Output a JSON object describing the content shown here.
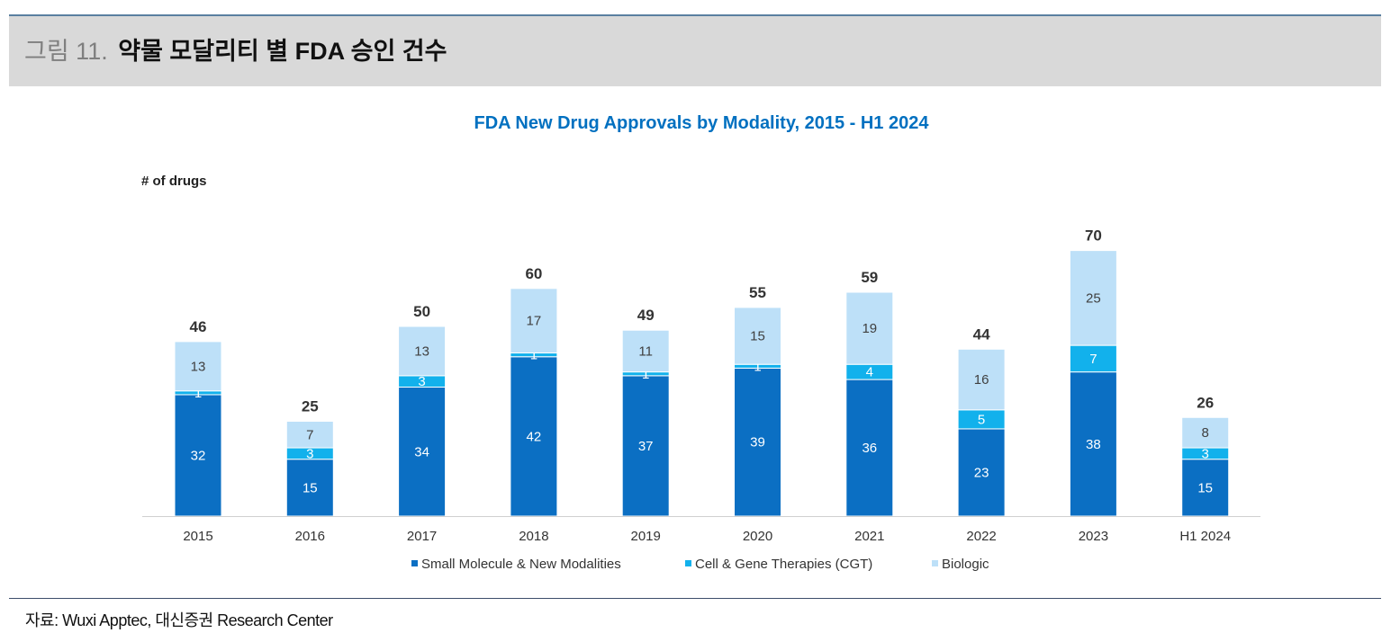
{
  "figure": {
    "label": "그림 11.",
    "title": "약물 모달리티 별 FDA 승인 건수"
  },
  "source": "자료: Wuxi Apptec, 대신증권 Research Center",
  "colors": {
    "small_molecule": "#0b6fc3",
    "cgt": "#12b1ec",
    "biologic": "#bde0f8",
    "title": "#0070c0"
  },
  "chart_data": {
    "type": "bar",
    "stacked": true,
    "title": "FDA New Drug Approvals by Modality, 2015 - H1 2024",
    "ylabel": "# of drugs",
    "xlabel": "",
    "ylim": [
      0,
      70
    ],
    "grid": false,
    "legend_position": "bottom",
    "categories": [
      "2015",
      "2016",
      "2017",
      "2018",
      "2019",
      "2020",
      "2021",
      "2022",
      "2023",
      "H1 2024"
    ],
    "totals": [
      46,
      25,
      50,
      60,
      49,
      55,
      59,
      44,
      70,
      26
    ],
    "series": [
      {
        "name": "Small Molecule & New Modalities",
        "color": "#0b6fc3",
        "label_color": "#ffffff",
        "values": [
          32,
          15,
          34,
          42,
          37,
          39,
          36,
          23,
          38,
          15
        ]
      },
      {
        "name": "Cell & Gene Therapies (CGT)",
        "color": "#12b1ec",
        "label_color": "#ffffff",
        "values": [
          1,
          3,
          3,
          1,
          1,
          1,
          4,
          5,
          7,
          3
        ]
      },
      {
        "name": "Biologic",
        "color": "#bde0f8",
        "label_color": "#404040",
        "values": [
          13,
          7,
          13,
          17,
          11,
          15,
          19,
          16,
          25,
          8
        ]
      }
    ]
  }
}
